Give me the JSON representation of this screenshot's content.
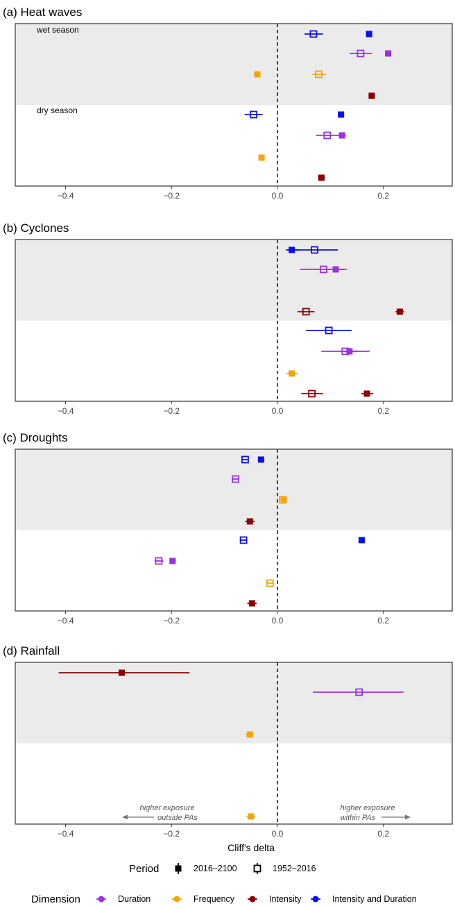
{
  "colors": {
    "Duration": "#9b30e8",
    "Frequency": "#f5a40a",
    "Intensity": "#8b0000",
    "Intensity and Duration": "#0a10e8"
  },
  "chart_data": {
    "type": "scatter",
    "xlabel": "Cliff's delta",
    "xlim": [
      -0.495,
      0.33
    ],
    "xticks": [
      -0.4,
      -0.2,
      0.0,
      0.2
    ],
    "xtick_labels": [
      "−0.4",
      "−0.2",
      "0.0",
      "0.2"
    ],
    "season_labels": [
      "wet season",
      "dry season"
    ],
    "panels": [
      {
        "title": "(a) Heat waves",
        "points": [
          {
            "row": 0,
            "dimension": "Intensity and Duration",
            "period": "1952–2016",
            "x": 0.068,
            "lo": 0.051,
            "hi": 0.086
          },
          {
            "row": 0,
            "dimension": "Intensity and Duration",
            "period": "2016–2100",
            "x": 0.173,
            "lo": 0.168,
            "hi": 0.179
          },
          {
            "row": 1,
            "dimension": "Duration",
            "period": "1952–2016",
            "x": 0.157,
            "lo": 0.136,
            "hi": 0.178
          },
          {
            "row": 1,
            "dimension": "Duration",
            "period": "2016–2100",
            "x": 0.209,
            "lo": 0.203,
            "hi": 0.215
          },
          {
            "row": 2,
            "dimension": "Frequency",
            "period": "2016–2100",
            "x": -0.038,
            "lo": -0.042,
            "hi": -0.034
          },
          {
            "row": 2,
            "dimension": "Frequency",
            "period": "1952–2016",
            "x": 0.078,
            "lo": 0.066,
            "hi": 0.091
          },
          {
            "row": 3,
            "dimension": "Intensity",
            "period": "2016–2100",
            "x": 0.178,
            "lo": 0.172,
            "hi": 0.184
          },
          {
            "row": 4,
            "dimension": "Intensity and Duration",
            "period": "1952–2016",
            "x": -0.045,
            "lo": -0.062,
            "hi": -0.028
          },
          {
            "row": 4,
            "dimension": "Intensity and Duration",
            "period": "2016–2100",
            "x": 0.12,
            "lo": 0.114,
            "hi": 0.126
          },
          {
            "row": 5,
            "dimension": "Duration",
            "period": "1952–2016",
            "x": 0.094,
            "lo": 0.073,
            "hi": 0.116
          },
          {
            "row": 5,
            "dimension": "Duration",
            "period": "2016–2100",
            "x": 0.122,
            "lo": 0.115,
            "hi": 0.129
          },
          {
            "row": 6,
            "dimension": "Frequency",
            "period": "2016–2100",
            "x": -0.03,
            "lo": -0.034,
            "hi": -0.026
          },
          {
            "row": 7,
            "dimension": "Intensity",
            "period": "2016–2100",
            "x": 0.083,
            "lo": 0.077,
            "hi": 0.09
          }
        ]
      },
      {
        "title": "(b) Cyclones",
        "points": [
          {
            "row": 0,
            "dimension": "Intensity and Duration",
            "period": "1952–2016",
            "x": 0.07,
            "lo": 0.027,
            "hi": 0.114
          },
          {
            "row": 0,
            "dimension": "Intensity and Duration",
            "period": "2016–2100",
            "x": 0.027,
            "lo": 0.016,
            "hi": 0.042
          },
          {
            "row": 1,
            "dimension": "Duration",
            "period": "1952–2016",
            "x": 0.087,
            "lo": 0.043,
            "hi": 0.131
          },
          {
            "row": 1,
            "dimension": "Duration",
            "period": "2016–2100",
            "x": 0.11,
            "lo": 0.096,
            "hi": 0.124
          },
          {
            "row": 3,
            "dimension": "Intensity",
            "period": "1952–2016",
            "x": 0.054,
            "lo": 0.038,
            "hi": 0.07
          },
          {
            "row": 3,
            "dimension": "Intensity",
            "period": "2016–2100",
            "x": 0.231,
            "lo": 0.223,
            "hi": 0.239
          },
          {
            "row": 4,
            "dimension": "Intensity and Duration",
            "period": "1952–2016",
            "x": 0.097,
            "lo": 0.054,
            "hi": 0.14
          },
          {
            "row": 5,
            "dimension": "Duration",
            "period": "1952–2016",
            "x": 0.128,
            "lo": 0.083,
            "hi": 0.174
          },
          {
            "row": 5,
            "dimension": "Duration",
            "period": "2016–2100",
            "x": 0.136,
            "lo": 0.12,
            "hi": 0.152
          },
          {
            "row": 6,
            "dimension": "Frequency",
            "period": "2016–2100",
            "x": 0.027,
            "lo": 0.017,
            "hi": 0.038
          },
          {
            "row": 7,
            "dimension": "Intensity",
            "period": "1952–2016",
            "x": 0.065,
            "lo": 0.045,
            "hi": 0.086
          },
          {
            "row": 7,
            "dimension": "Intensity",
            "period": "2016–2100",
            "x": 0.169,
            "lo": 0.158,
            "hi": 0.181
          }
        ]
      },
      {
        "title": "(c) Droughts",
        "points": [
          {
            "row": 0,
            "dimension": "Intensity and Duration",
            "period": "1952–2016",
            "x": -0.061,
            "lo": -0.068,
            "hi": -0.054
          },
          {
            "row": 0,
            "dimension": "Intensity and Duration",
            "period": "2016–2100",
            "x": -0.031,
            "lo": -0.037,
            "hi": -0.025
          },
          {
            "row": 1,
            "dimension": "Duration",
            "period": "1952–2016",
            "x": -0.079,
            "lo": -0.086,
            "hi": -0.072
          },
          {
            "row": 2,
            "dimension": "Frequency",
            "period": "1952–2016",
            "x": 0.01,
            "lo": 0.003,
            "hi": 0.017
          },
          {
            "row": 2,
            "dimension": "Frequency",
            "period": "2016–2100",
            "x": 0.012,
            "lo": 0.007,
            "hi": 0.017
          },
          {
            "row": 3,
            "dimension": "Intensity",
            "period": "2016–2100",
            "x": -0.052,
            "lo": -0.061,
            "hi": -0.043
          },
          {
            "row": 4,
            "dimension": "Intensity and Duration",
            "period": "1952–2016",
            "x": -0.064,
            "lo": -0.071,
            "hi": -0.057
          },
          {
            "row": 4,
            "dimension": "Intensity and Duration",
            "period": "2016–2100",
            "x": 0.159,
            "lo": 0.154,
            "hi": 0.165
          },
          {
            "row": 5,
            "dimension": "Duration",
            "period": "1952–2016",
            "x": -0.224,
            "lo": -0.232,
            "hi": -0.216
          },
          {
            "row": 5,
            "dimension": "Duration",
            "period": "2016–2100",
            "x": -0.198,
            "lo": -0.204,
            "hi": -0.192
          },
          {
            "row": 6,
            "dimension": "Frequency",
            "period": "1952–2016",
            "x": -0.014,
            "lo": -0.021,
            "hi": -0.007
          },
          {
            "row": 7,
            "dimension": "Intensity",
            "period": "2016–2100",
            "x": -0.048,
            "lo": -0.057,
            "hi": -0.039
          }
        ]
      },
      {
        "title": "(d) Rainfall",
        "points": [
          {
            "row": 0,
            "dimension": "Intensity",
            "period": "2016–2100",
            "x": -0.294,
            "lo": -0.413,
            "hi": -0.166
          },
          {
            "row": 1,
            "dimension": "Duration",
            "period": "1952–2016",
            "x": 0.154,
            "lo": 0.067,
            "hi": 0.238
          },
          {
            "row": 3,
            "dimension": "Frequency",
            "period": "2016–2100",
            "x": -0.052,
            "lo": -0.06,
            "hi": -0.044
          },
          {
            "row": 7,
            "dimension": "Frequency",
            "period": "2016–2100",
            "x": -0.05,
            "lo": -0.058,
            "hi": -0.042
          }
        ]
      }
    ],
    "annotations": {
      "left": [
        "higher exposure",
        "outside PAs"
      ],
      "right": [
        "higher exposure",
        "within PAs"
      ]
    },
    "legend": {
      "period_title": "Period",
      "periods": [
        "2016–2100",
        "1952–2016"
      ],
      "dimension_title": "Dimension",
      "dimensions": [
        "Duration",
        "Frequency",
        "Intensity",
        "Intensity and Duration"
      ]
    }
  }
}
